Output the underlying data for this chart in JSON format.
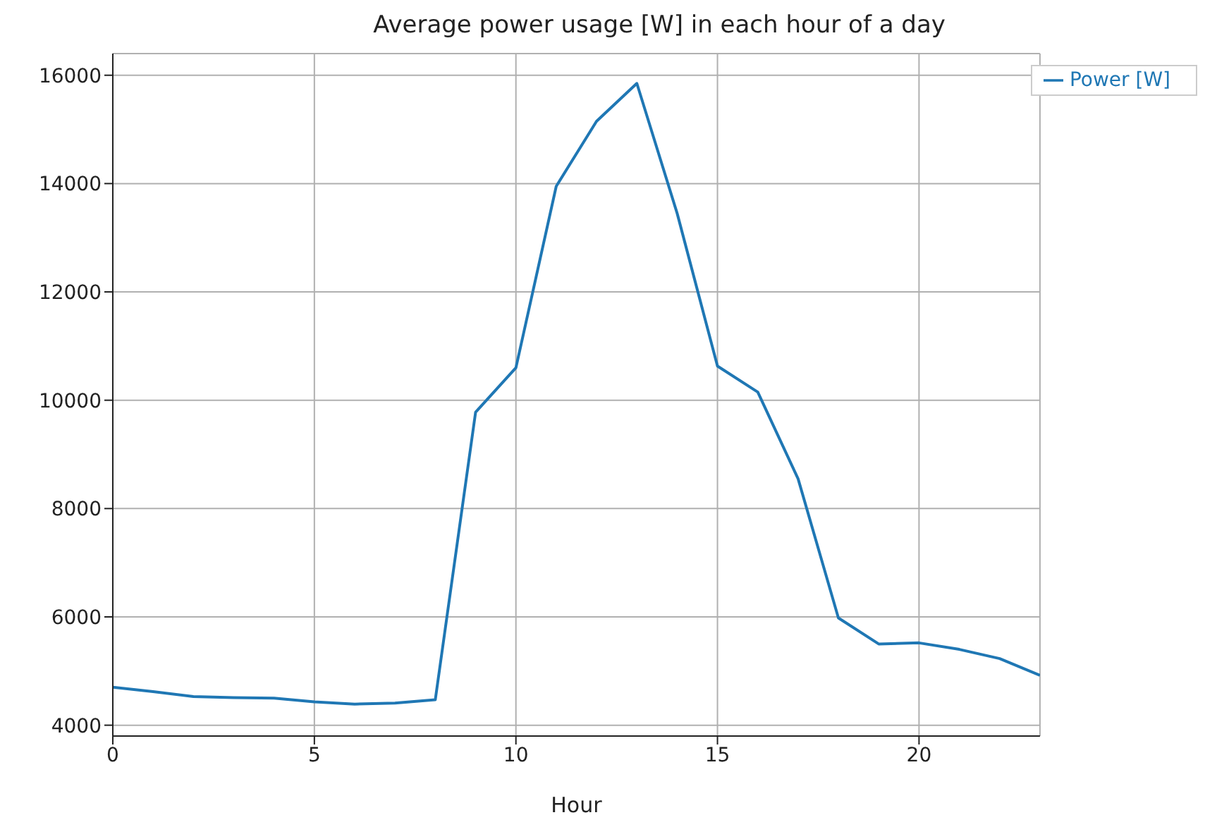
{
  "chart_data": {
    "type": "line",
    "title": "Average power usage [W] in each hour of a day",
    "xlabel": "Hour",
    "x": [
      0,
      1,
      2,
      3,
      4,
      5,
      6,
      7,
      8,
      9,
      10,
      11,
      12,
      13,
      14,
      15,
      16,
      17,
      18,
      19,
      20,
      21,
      22,
      23
    ],
    "series": [
      {
        "name": "Power [W]",
        "color": "#1f77b4",
        "values": [
          4700,
          4620,
          4530,
          4510,
          4500,
          4430,
          4390,
          4410,
          4470,
          9780,
          10600,
          13950,
          15150,
          15850,
          13450,
          10630,
          10150,
          8550,
          5980,
          5500,
          5520,
          5400,
          5230,
          4920
        ]
      }
    ],
    "xlim": [
      0,
      23
    ],
    "xticks": [
      0,
      5,
      10,
      15,
      20
    ],
    "ylim": [
      3800,
      16400
    ],
    "yticks": [
      4000,
      6000,
      8000,
      10000,
      12000,
      14000,
      16000
    ],
    "grid": true,
    "legend": "top right",
    "marker": "none",
    "line_style": "solid"
  }
}
